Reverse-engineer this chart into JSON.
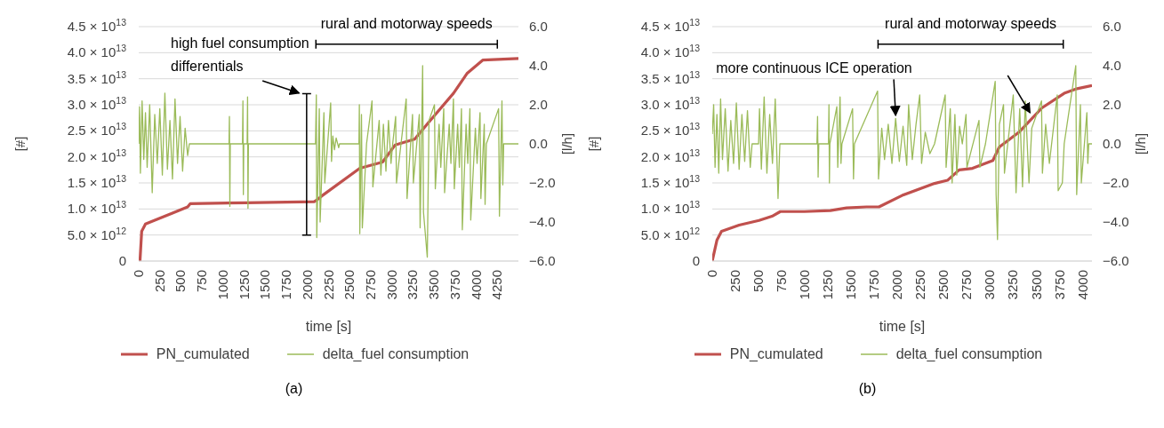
{
  "chart_data": [
    {
      "type": "line",
      "xlabel": "time [s]",
      "ylabel": "[#]",
      "y2label": "[l/h]",
      "xlim": [
        0,
        4500
      ],
      "xticks": [
        0,
        250,
        500,
        750,
        1000,
        1250,
        1500,
        1750,
        2000,
        2250,
        2500,
        2750,
        3000,
        3250,
        3500,
        3750,
        4000,
        4250
      ],
      "ylim": [
        0,
        45000000000000
      ],
      "yticks": [
        0,
        {
          "value": 5000000000000,
          "label": "5.0 × 10$^{12}$"
        },
        {
          "value": 10000000000000,
          "label": "1.0 × 10$^{13}$"
        },
        {
          "value": 15000000000000,
          "label": "1.5 × 10$^{13}$"
        },
        {
          "value": 20000000000000,
          "label": "2.0 × 10$^{13}$"
        },
        {
          "value": 25000000000000,
          "label": "2.5 × 10$^{13}$"
        },
        {
          "value": 30000000000000,
          "label": "3.0 × 10$^{13}$"
        },
        {
          "value": 35000000000000,
          "label": "3.5 × 10$^{13}$"
        },
        {
          "value": 40000000000000,
          "label": "4.0 × 10$^{13}$"
        },
        {
          "value": 45000000000000,
          "label": "4.5 × 10$^{13}$"
        }
      ],
      "y2lim": [
        -6,
        6
      ],
      "y2ticks": [
        {
          "value": -6,
          "label": "−6.0"
        },
        {
          "value": -4,
          "label": "−4.0"
        },
        {
          "value": -2,
          "label": "−2.0"
        },
        {
          "value": 0,
          "label": "0.0"
        },
        {
          "value": 2,
          "label": "2.0"
        },
        {
          "value": 4,
          "label": "4.0"
        },
        {
          "value": 6,
          "label": "6.0"
        }
      ],
      "grid": "y",
      "legend": "bottom",
      "annotations": [
        "high fuel consumption differentials",
        "rural and motorway speeds",
        "(a)"
      ],
      "series": [
        {
          "name": "PN_cumulated",
          "color": "#c0504d",
          "x": [
            0,
            15,
            35,
            80,
            230,
            400,
            580,
            610,
            1270,
            2080,
            2100,
            2170,
            2620,
            2890,
            3040,
            3270,
            3430,
            3730,
            3890,
            4080,
            4500
          ],
          "values": [
            0,
            0,
            5700000000000.0,
            7100000000000.0,
            8100000000000.0,
            9200000000000.0,
            10400000000000.0,
            11000000000000.0,
            11200000000000.0,
            11400000000000.0,
            11600000000000.0,
            12500000000000.0,
            17800000000000.0,
            19000000000000.0,
            22300000000000.0,
            23400000000000.0,
            26500000000000.0,
            32200000000000.0,
            36000000000000.0,
            38600000000000.0,
            38900000000000.0
          ]
        },
        {
          "name": "delta_fuel consumption",
          "color": "#9bbb59",
          "axis": "y2",
          "x": [
            0,
            10,
            20,
            40,
            60,
            80,
            100,
            130,
            160,
            190,
            220,
            250,
            280,
            310,
            340,
            370,
            400,
            430,
            460,
            490,
            520,
            550,
            580,
            600,
            1070,
            1075,
            1080,
            1085,
            1230,
            1235,
            1240,
            1245,
            1285,
            1290,
            1295,
            1300,
            2095,
            2105,
            2110,
            2140,
            2150,
            2195,
            2205,
            2275,
            2285,
            2300,
            2320,
            2340,
            2370,
            2380,
            2610,
            2615,
            2620,
            2640,
            2650,
            2700,
            2765,
            2775,
            2850,
            2870,
            2900,
            2930,
            2960,
            2990,
            3010,
            3045,
            3055,
            3170,
            3180,
            3245,
            3255,
            3325,
            3335,
            3365,
            3375,
            3420,
            3440,
            3505,
            3515,
            3560,
            3580,
            3615,
            3625,
            3680,
            3700,
            3730,
            3740,
            3780,
            3800,
            3825,
            3835,
            3880,
            3900,
            3925,
            3935,
            3990,
            4010,
            4045,
            4055,
            4095,
            4105,
            4120,
            4265,
            4275,
            4305,
            4315,
            4325,
            4500
          ],
          "values": [
            0,
            1.9,
            -1.5,
            2.2,
            -0.8,
            1.6,
            -1.2,
            2.0,
            -2.5,
            1.5,
            -1.0,
            1.8,
            -1.6,
            2.6,
            -1.3,
            1.2,
            -1.8,
            2.3,
            -1.0,
            1.4,
            -1.4,
            0.8,
            -0.6,
            0,
            0,
            1.4,
            -3.2,
            0,
            0,
            2.2,
            -2.6,
            0,
            0,
            2.4,
            -3.3,
            0,
            0,
            2.5,
            -4.8,
            1.8,
            -4.0,
            1.6,
            -2.0,
            2.1,
            -0.9,
            0.4,
            -0.3,
            0.3,
            -0.2,
            0,
            0,
            2.0,
            -4.6,
            1.5,
            -4.3,
            0,
            2.2,
            -2.2,
            1.2,
            -1.6,
            1.0,
            -1.4,
            1.2,
            -1.0,
            0,
            1.4,
            -2.0,
            2.3,
            -2.8,
            1.5,
            -2.0,
            1.5,
            -4.3,
            4.0,
            -3.5,
            -5.8,
            1.2,
            2.0,
            -2.3,
            1.0,
            -1.2,
            1.8,
            -2.5,
            1.0,
            -1.0,
            2.3,
            -2.3,
            1.0,
            -1.2,
            1.8,
            -4.4,
            1.0,
            -1.0,
            1.8,
            -3.9,
            0.8,
            -1.0,
            1.6,
            -2.8,
            1.0,
            -3.1,
            0,
            1.8,
            -3.7,
            2.2,
            -2.1,
            0,
            0
          ]
        }
      ]
    },
    {
      "type": "line",
      "xlabel": "time [s]",
      "ylabel": "[#]",
      "y2label": "[l/h]",
      "xlim": [
        0,
        4100
      ],
      "xticks": [
        0,
        250,
        500,
        750,
        1000,
        1250,
        1500,
        1750,
        2000,
        2250,
        2500,
        2750,
        3000,
        3250,
        3500,
        3750,
        4000
      ],
      "ylim": [
        0,
        45000000000000
      ],
      "yticks": [
        0,
        {
          "value": 5000000000000,
          "label": "5.0 × 10$^{12}$"
        },
        {
          "value": 10000000000000,
          "label": "1.0 × 10$^{13}$"
        },
        {
          "value": 15000000000000,
          "label": "1.5 × 10$^{13}$"
        },
        {
          "value": 20000000000000,
          "label": "2.0 × 10$^{13}$"
        },
        {
          "value": 25000000000000,
          "label": "2.5 × 10$^{13}$"
        },
        {
          "value": 30000000000000,
          "label": "3.0 × 10$^{13}$"
        },
        {
          "value": 35000000000000,
          "label": "3.5 × 10$^{13}$"
        },
        {
          "value": 40000000000000,
          "label": "4.0 × 10$^{13}$"
        },
        {
          "value": 45000000000000,
          "label": "4.5 × 10$^{13}$"
        }
      ],
      "y2lim": [
        -6,
        6
      ],
      "y2ticks": [
        {
          "value": -6,
          "label": "−6.0"
        },
        {
          "value": -4,
          "label": "−4.0"
        },
        {
          "value": -2,
          "label": "−2.0"
        },
        {
          "value": 0,
          "label": "0.0"
        },
        {
          "value": 2,
          "label": "2.0"
        },
        {
          "value": 4,
          "label": "4.0"
        },
        {
          "value": 6,
          "label": "6.0"
        }
      ],
      "grid": "y",
      "legend": "bottom",
      "annotations": [
        {
          "text": "more continuous ICE operation",
          "x": 1980,
          "y": 28000000000000.0
        },
        "rural and motorway speeds",
        "(b)"
      ],
      "series": [
        {
          "name": "PN_cumulated",
          "color": "#c0504d",
          "x": [
            0,
            50,
            100,
            290,
            505,
            645,
            735,
            995,
            1275,
            1450,
            1665,
            1800,
            2050,
            2400,
            2540,
            2665,
            2810,
            3030,
            3100,
            3310,
            3560,
            3800,
            3940,
            4100
          ],
          "values": [
            0,
            4000000000000.0,
            5700000000000.0,
            6900000000000.0,
            7800000000000.0,
            8600000000000.0,
            9500000000000.0,
            9500000000000.0,
            9700000000000.0,
            10200000000000.0,
            10400000000000.0,
            10400000000000.0,
            12600000000000.0,
            14900000000000.0,
            15500000000000.0,
            17500000000000.0,
            17800000000000.0,
            19300000000000.0,
            21900000000000.0,
            24700000000000.0,
            29400000000000.0,
            32200000000000.0,
            33100000000000.0,
            33700000000000.0
          ]
        },
        {
          "name": "delta_fuel consumption",
          "color": "#9bbb59",
          "axis": "y2",
          "x": [
            0,
            15,
            30,
            50,
            70,
            90,
            110,
            140,
            170,
            200,
            230,
            260,
            290,
            320,
            350,
            380,
            410,
            430,
            500,
            510,
            530,
            560,
            590,
            620,
            650,
            680,
            710,
            730,
            1130,
            1137,
            1143,
            1150,
            1255,
            1260,
            1265,
            1270,
            1345,
            1355,
            1380,
            1390,
            1400,
            1515,
            1525,
            1535,
            1785,
            1795,
            1830,
            1860,
            1900,
            1940,
            1980,
            2020,
            2060,
            2100,
            2120,
            2160,
            2200,
            2240,
            2260,
            2300,
            2350,
            2400,
            2515,
            2525,
            2570,
            2590,
            2620,
            2640,
            2670,
            2700,
            2740,
            2750,
            2880,
            2890,
            2950,
            3055,
            3065,
            3080,
            3100,
            3145,
            3155,
            3250,
            3280,
            3320,
            3350,
            3380,
            3420,
            3450,
            3555,
            3565,
            3600,
            3640,
            3725,
            3735,
            3780,
            3800,
            3925,
            3935,
            3975,
            3985,
            4045,
            4055,
            4065,
            4100
          ],
          "values": [
            0.5,
            2.0,
            -1.2,
            1.5,
            -1.5,
            2.3,
            -0.8,
            1.8,
            -1.4,
            1.2,
            -1.0,
            2.1,
            -1.3,
            1.5,
            -0.9,
            1.7,
            -1.2,
            0,
            0,
            1.8,
            -1.3,
            2.4,
            -1.5,
            1.5,
            -1.0,
            2.3,
            -2.8,
            0,
            0,
            1.4,
            -1.7,
            0,
            0,
            2.0,
            -2.0,
            0,
            1.9,
            -1.2,
            2.4,
            -1.0,
            0,
            1.8,
            -1.8,
            0,
            2.7,
            -1.8,
            0.8,
            -0.8,
            1.0,
            -1.0,
            1.3,
            -0.9,
            0.9,
            -1.1,
            2.0,
            -0.8,
            1.0,
            2.5,
            -1.0,
            0.6,
            -0.5,
            0,
            2.5,
            -1.2,
            1.8,
            -2.0,
            1.5,
            -1.6,
            0.9,
            0,
            1.5,
            -1.2,
            1.2,
            -1.2,
            0,
            3.2,
            -2.6,
            -4.9,
            1.0,
            2.0,
            -1.5,
            2.5,
            -2.5,
            1.8,
            -2.2,
            2.2,
            -2.0,
            0.8,
            2.2,
            -1.5,
            1.0,
            -1.0,
            2.5,
            -2.4,
            -2.0,
            0,
            4.0,
            -2.6,
            2.0,
            -2.0,
            1.6,
            -1.0,
            0,
            0
          ]
        }
      ]
    }
  ]
}
